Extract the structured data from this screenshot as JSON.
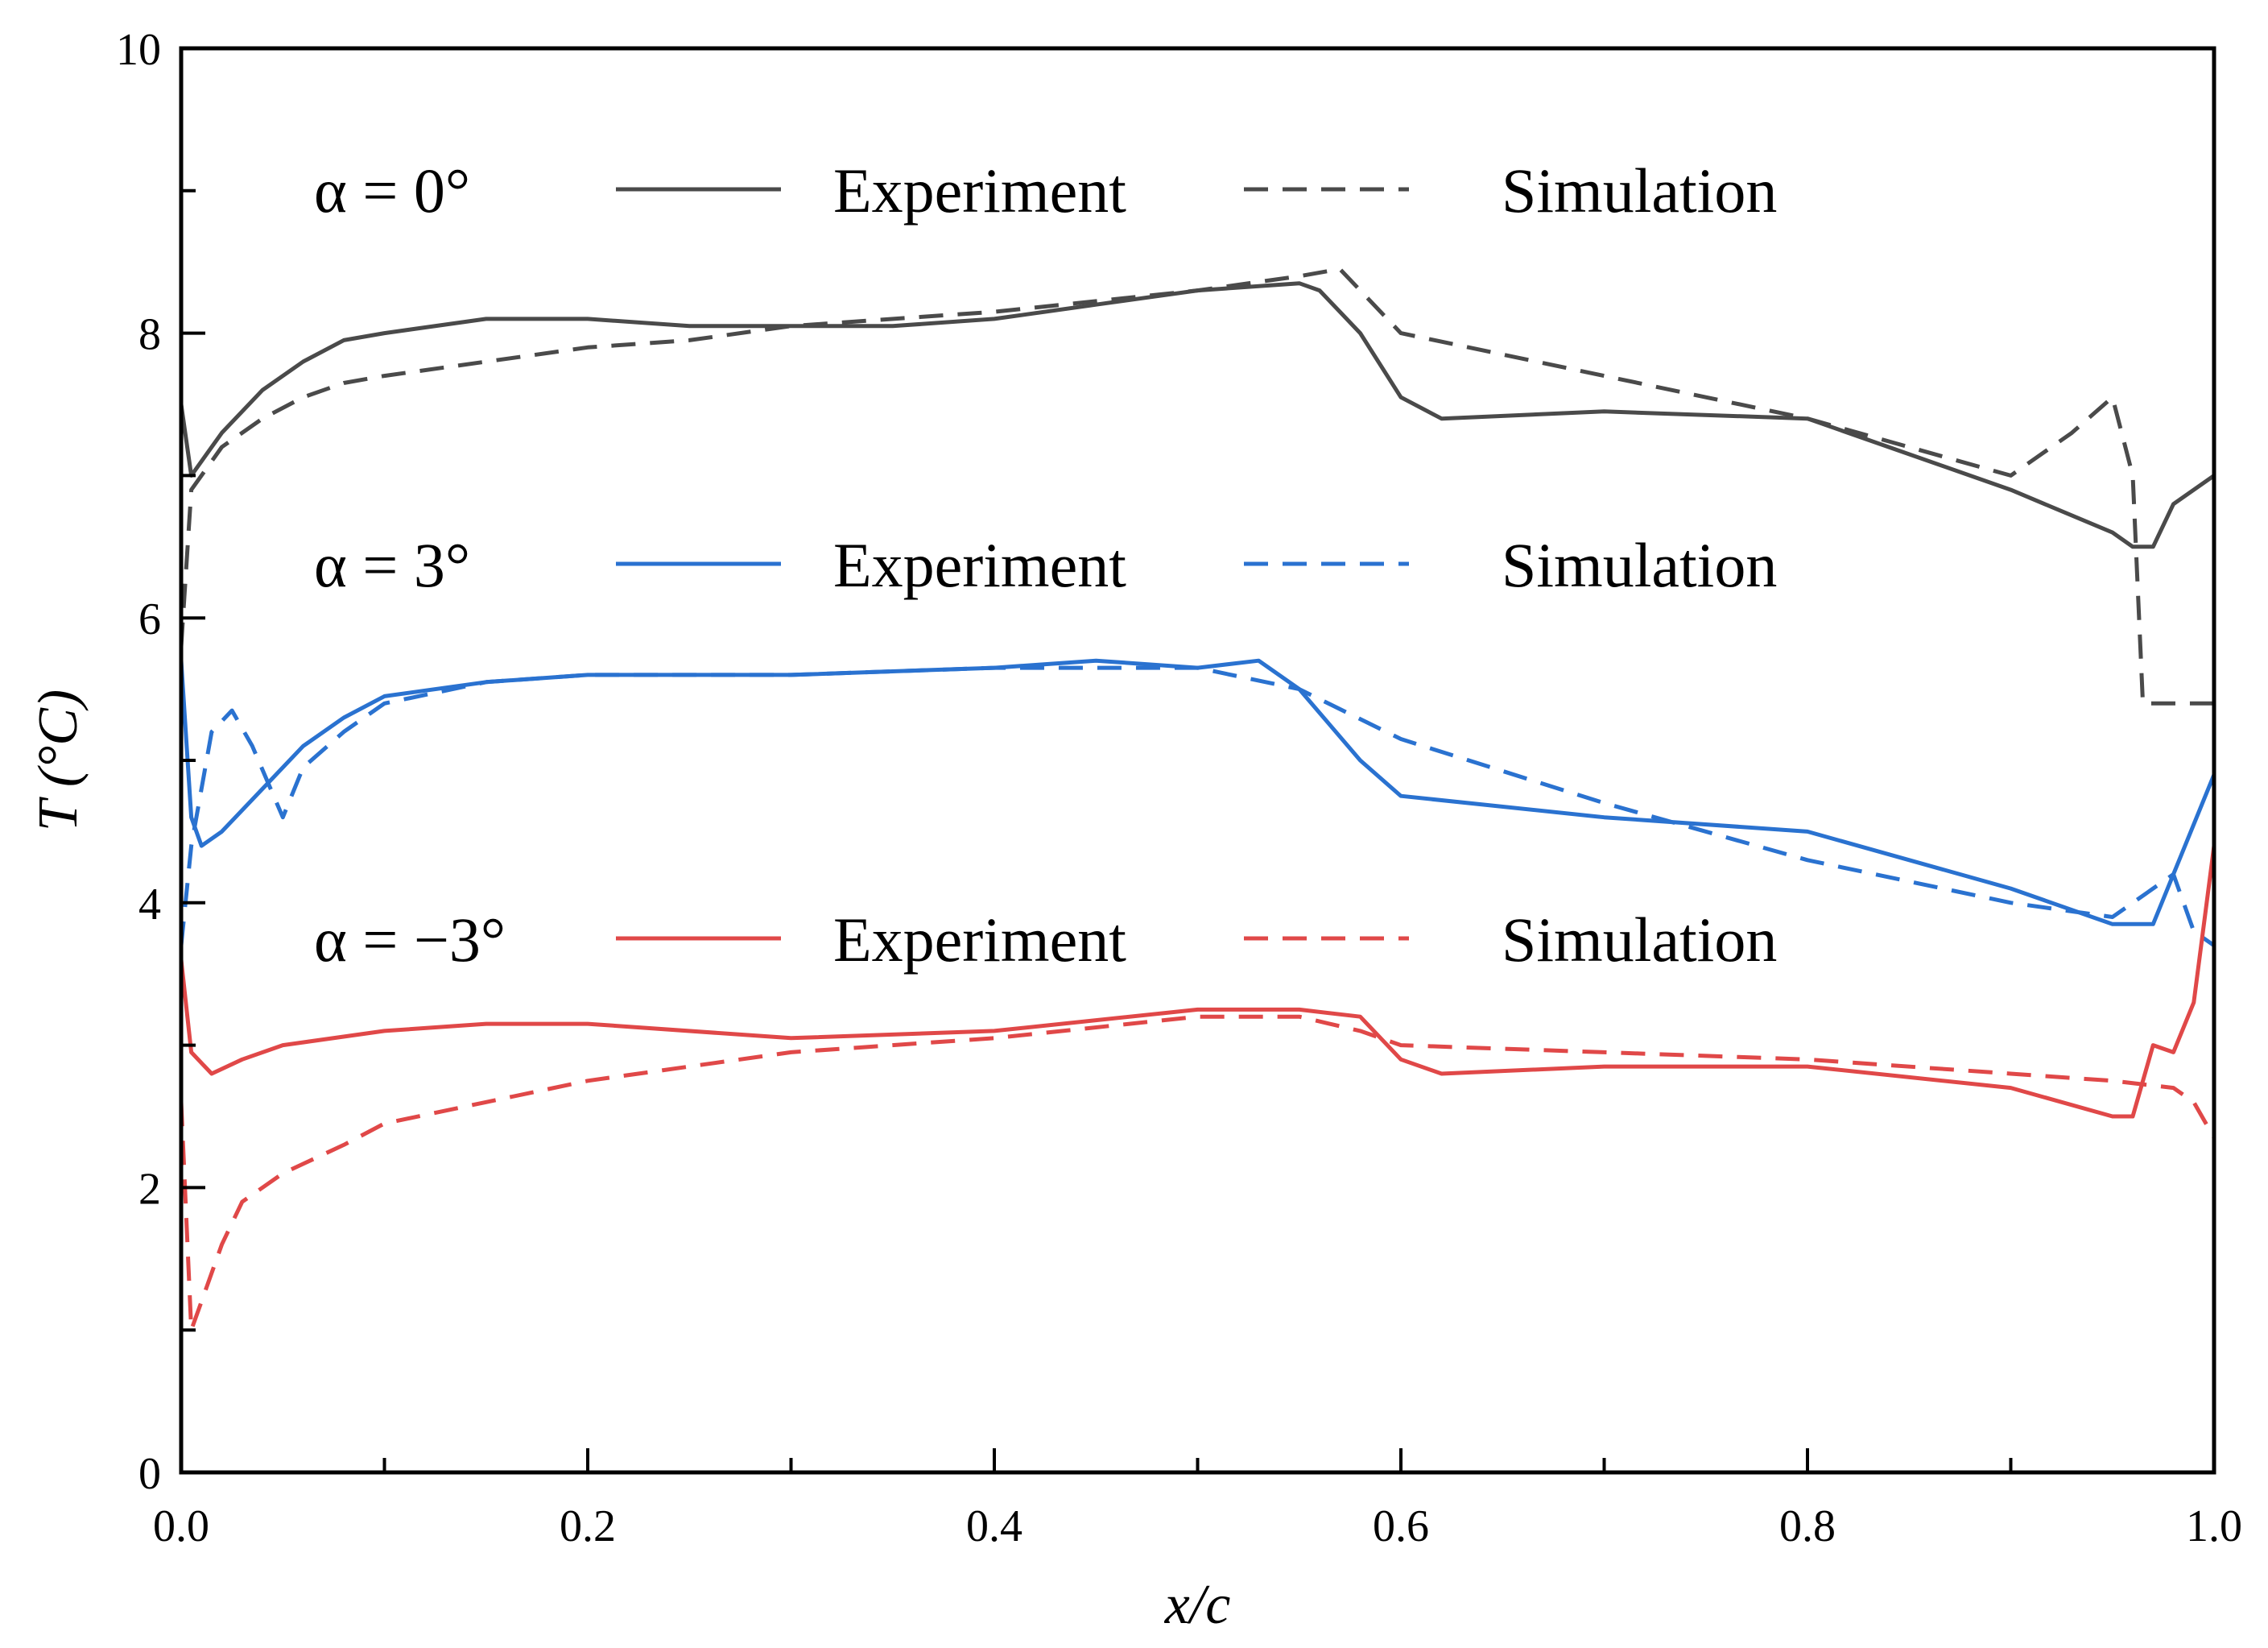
{
  "chart_data": {
    "type": "line",
    "xlabel": "x/c",
    "ylabel": "T (°C)",
    "xlim": [
      0,
      1
    ],
    "ylim": [
      0,
      10
    ],
    "x_ticks": [
      "0.0",
      "0.2",
      "0.4",
      "0.6",
      "0.8",
      "1.0"
    ],
    "y_ticks": [
      "0",
      "2",
      "4",
      "6",
      "8",
      "10"
    ],
    "grid": false,
    "legend_placement": "inside-top",
    "legend_rows": [
      {
        "alpha_label": "α = 0°",
        "color": "#4a4a4a",
        "experiment_label": "Experiment",
        "simulation_label": "Simulation"
      },
      {
        "alpha_label": "α = 3°",
        "color": "#2a72d0",
        "experiment_label": "Experiment",
        "simulation_label": "Simulation"
      },
      {
        "alpha_label": "α = −3°",
        "color": "#e04848",
        "experiment_label": "Experiment",
        "simulation_label": "Simulation"
      }
    ],
    "series": [
      {
        "name": "α = 0° Experiment",
        "color": "#4a4a4a",
        "dash": false,
        "x": [
          0.0,
          0.005,
          0.02,
          0.04,
          0.06,
          0.08,
          0.1,
          0.15,
          0.2,
          0.25,
          0.3,
          0.35,
          0.4,
          0.45,
          0.5,
          0.55,
          0.56,
          0.58,
          0.6,
          0.62,
          0.7,
          0.8,
          0.9,
          0.95,
          0.96,
          0.97,
          0.98,
          1.0
        ],
        "y": [
          7.5,
          7.0,
          7.3,
          7.6,
          7.8,
          7.95,
          8.0,
          8.1,
          8.1,
          8.05,
          8.05,
          8.05,
          8.1,
          8.2,
          8.3,
          8.35,
          8.3,
          8.0,
          7.55,
          7.4,
          7.45,
          7.4,
          6.9,
          6.6,
          6.5,
          6.5,
          6.8,
          7.0
        ]
      },
      {
        "name": "α = 0° Simulation",
        "color": "#4a4a4a",
        "dash": true,
        "x": [
          0.0,
          0.005,
          0.02,
          0.04,
          0.06,
          0.08,
          0.1,
          0.15,
          0.2,
          0.25,
          0.3,
          0.4,
          0.5,
          0.55,
          0.57,
          0.6,
          0.7,
          0.8,
          0.9,
          0.93,
          0.95,
          0.96,
          0.965,
          1.0
        ],
        "y": [
          5.8,
          6.9,
          7.2,
          7.4,
          7.55,
          7.65,
          7.7,
          7.8,
          7.9,
          7.95,
          8.05,
          8.15,
          8.3,
          8.4,
          8.45,
          8.0,
          7.7,
          7.4,
          7.0,
          7.3,
          7.55,
          7.0,
          5.4,
          5.4
        ]
      },
      {
        "name": "α = 3° Experiment",
        "color": "#2a72d0",
        "dash": false,
        "x": [
          0.0,
          0.005,
          0.01,
          0.02,
          0.04,
          0.06,
          0.08,
          0.1,
          0.15,
          0.2,
          0.3,
          0.4,
          0.45,
          0.5,
          0.53,
          0.55,
          0.58,
          0.6,
          0.7,
          0.8,
          0.9,
          0.95,
          0.97,
          0.98,
          1.0
        ],
        "y": [
          5.7,
          4.6,
          4.4,
          4.5,
          4.8,
          5.1,
          5.3,
          5.45,
          5.55,
          5.6,
          5.6,
          5.65,
          5.7,
          5.65,
          5.7,
          5.5,
          5.0,
          4.75,
          4.6,
          4.5,
          4.1,
          3.85,
          3.85,
          4.2,
          4.9
        ]
      },
      {
        "name": "α = 3° Simulation",
        "color": "#2a72d0",
        "dash": true,
        "x": [
          0.0,
          0.005,
          0.015,
          0.025,
          0.035,
          0.05,
          0.06,
          0.08,
          0.1,
          0.15,
          0.2,
          0.3,
          0.4,
          0.5,
          0.55,
          0.6,
          0.7,
          0.8,
          0.9,
          0.95,
          0.97,
          0.98,
          0.99,
          1.0
        ],
        "y": [
          3.7,
          4.4,
          5.2,
          5.35,
          5.1,
          4.6,
          4.95,
          5.2,
          5.4,
          5.55,
          5.6,
          5.6,
          5.65,
          5.65,
          5.5,
          5.15,
          4.7,
          4.3,
          4.0,
          3.9,
          4.1,
          4.2,
          3.8,
          3.7
        ]
      },
      {
        "name": "α = −3° Experiment",
        "color": "#e04848",
        "dash": false,
        "x": [
          0.0,
          0.005,
          0.015,
          0.03,
          0.05,
          0.1,
          0.15,
          0.2,
          0.3,
          0.4,
          0.5,
          0.55,
          0.58,
          0.6,
          0.62,
          0.7,
          0.8,
          0.9,
          0.95,
          0.96,
          0.97,
          0.98,
          0.99,
          1.0
        ],
        "y": [
          3.6,
          2.95,
          2.8,
          2.9,
          3.0,
          3.1,
          3.15,
          3.15,
          3.05,
          3.1,
          3.25,
          3.25,
          3.2,
          2.9,
          2.8,
          2.85,
          2.85,
          2.7,
          2.5,
          2.5,
          3.0,
          2.95,
          3.3,
          4.4
        ]
      },
      {
        "name": "α = −3° Simulation",
        "color": "#e04848",
        "dash": true,
        "x": [
          0.0,
          0.005,
          0.01,
          0.02,
          0.03,
          0.05,
          0.08,
          0.1,
          0.15,
          0.2,
          0.3,
          0.4,
          0.5,
          0.55,
          0.58,
          0.6,
          0.7,
          0.8,
          0.9,
          0.95,
          0.98,
          0.99,
          1.0
        ],
        "y": [
          2.6,
          1.0,
          1.2,
          1.6,
          1.9,
          2.1,
          2.3,
          2.45,
          2.6,
          2.75,
          2.95,
          3.05,
          3.2,
          3.2,
          3.1,
          3.0,
          2.95,
          2.9,
          2.8,
          2.75,
          2.7,
          2.6,
          2.35
        ]
      }
    ]
  }
}
